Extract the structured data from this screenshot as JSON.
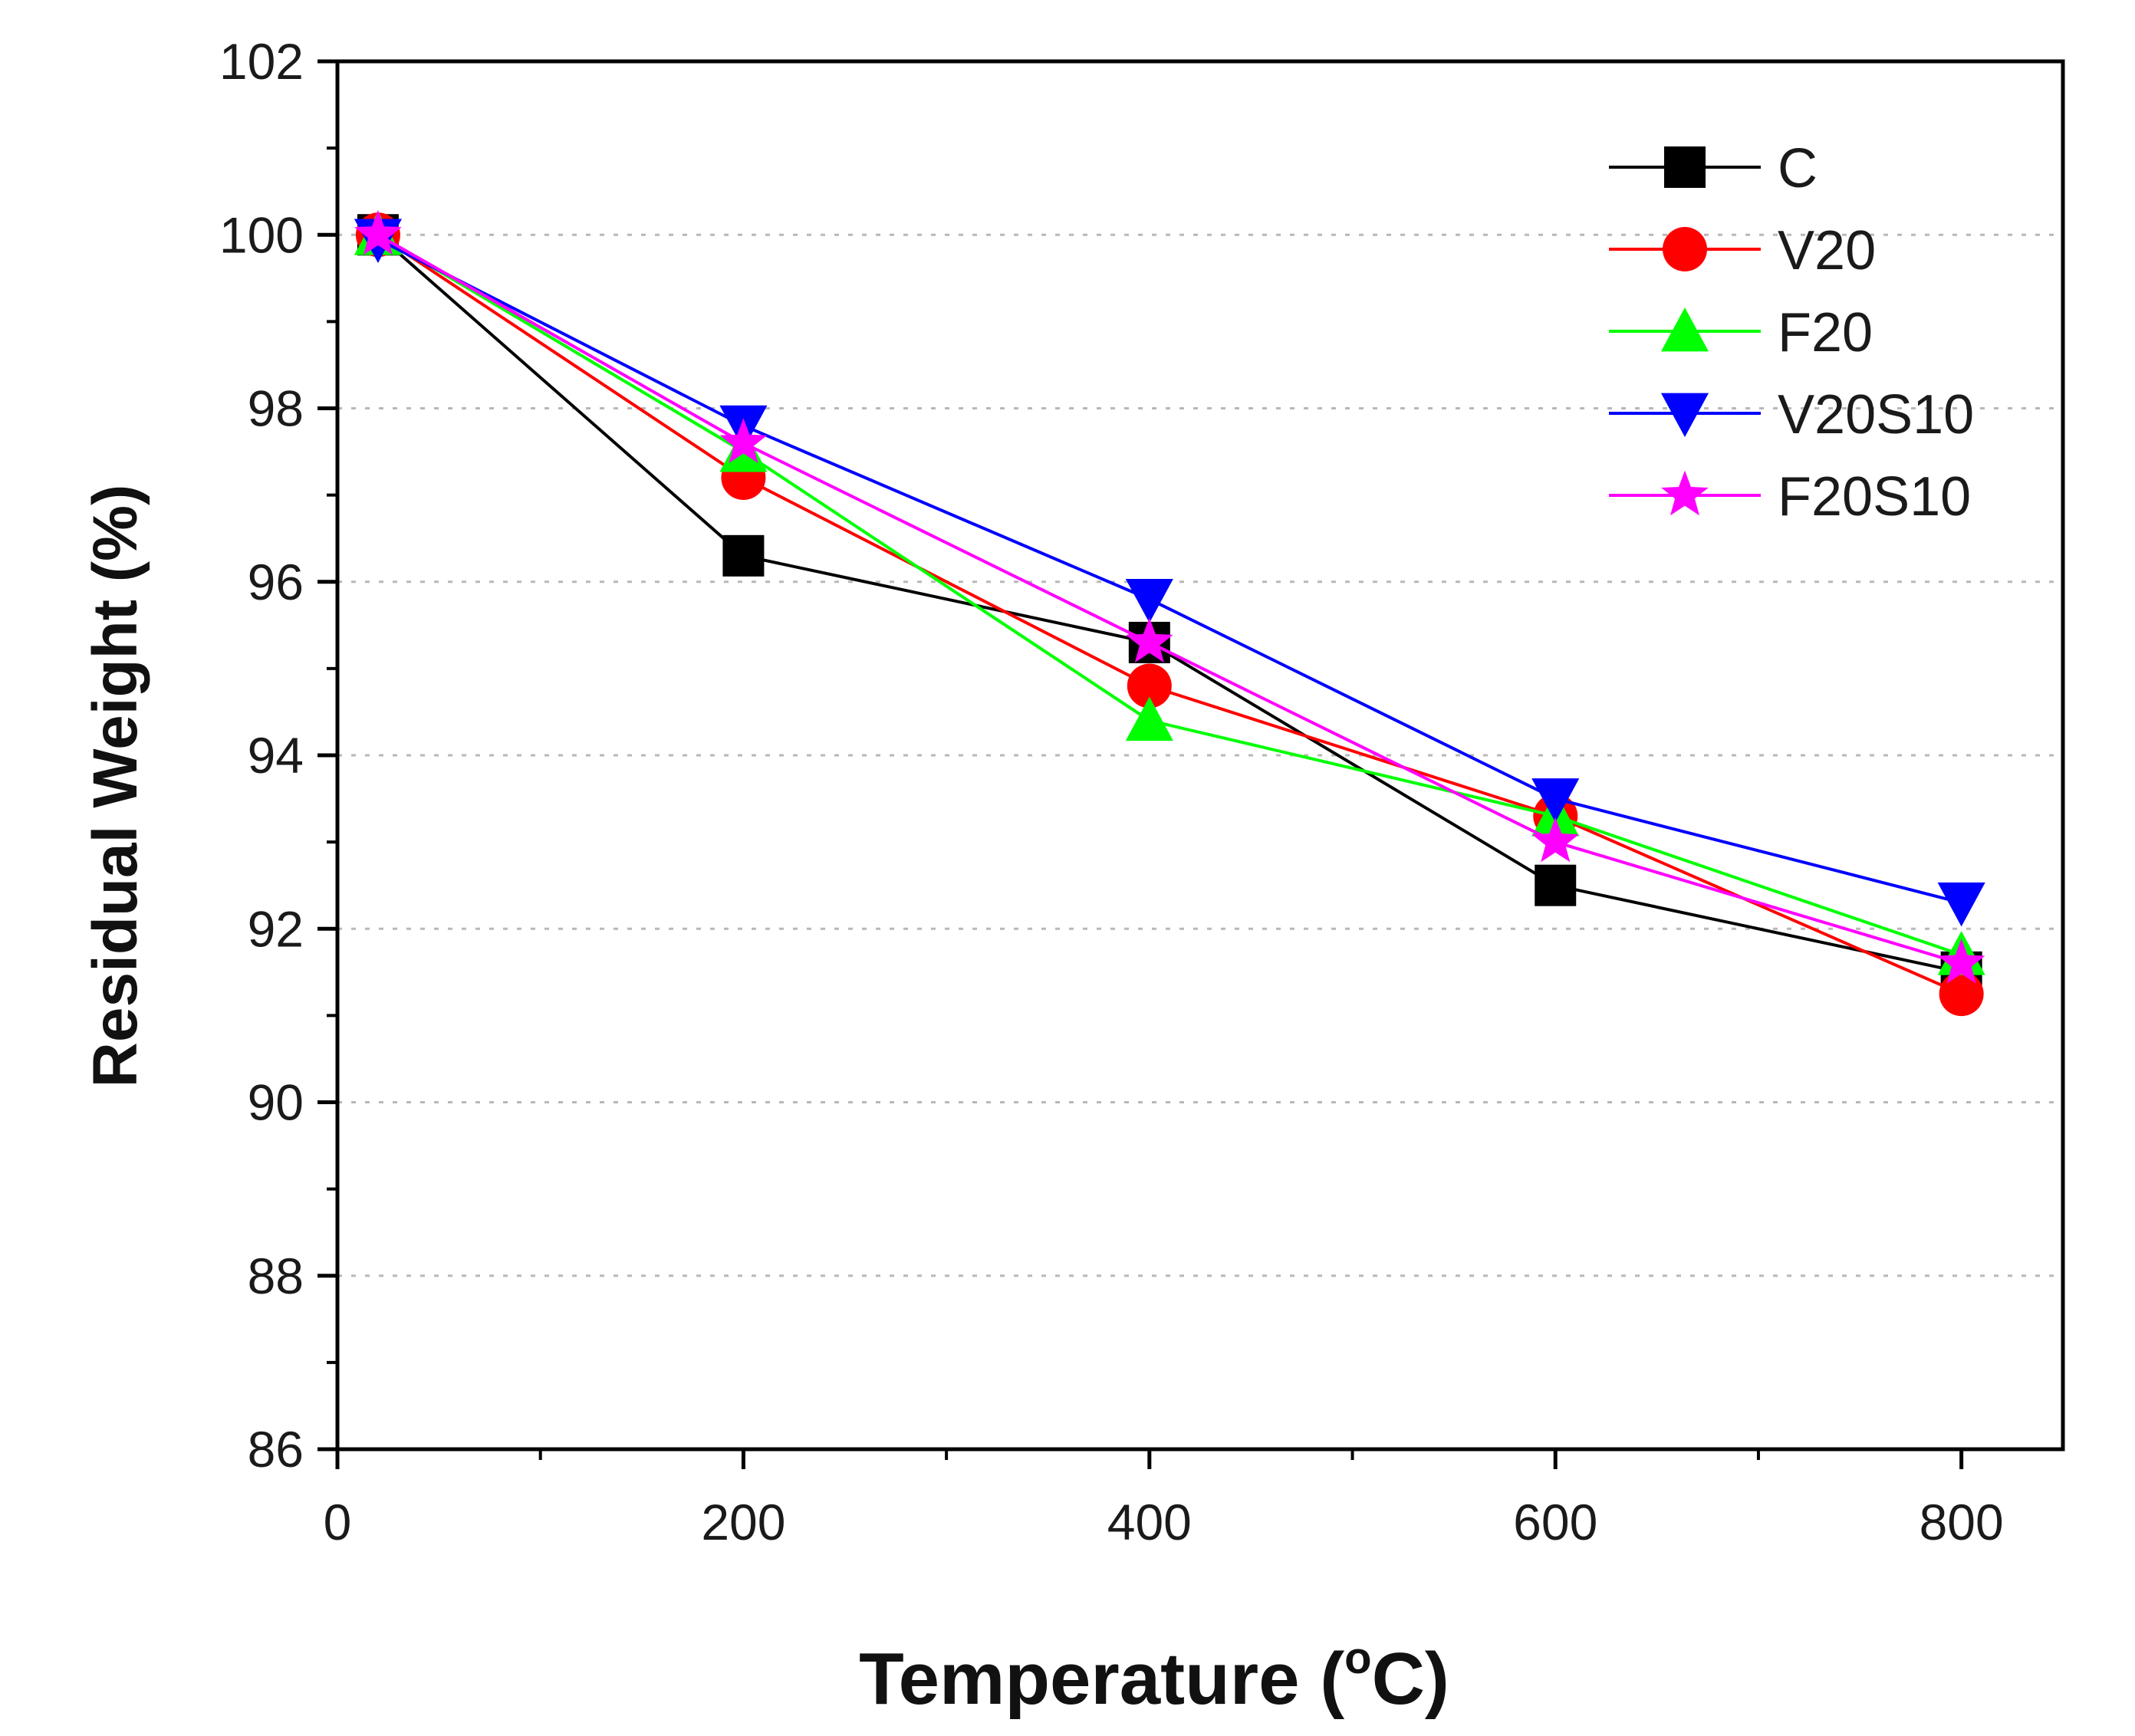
{
  "chart_data": {
    "type": "line",
    "xlabel": "Temperature (",
    "xlabel_sup": "o",
    "xlabel_end": "C)",
    "ylabel": "Residual Weight (%)",
    "xlim": [
      0,
      850
    ],
    "ylim": [
      86,
      102
    ],
    "xticks": [
      0,
      200,
      400,
      600,
      800
    ],
    "xtick_labels": [
      "0",
      "200",
      "400",
      "600",
      "800"
    ],
    "yticks": [
      86,
      88,
      90,
      92,
      94,
      96,
      98,
      100,
      102
    ],
    "ytick_labels": [
      "86",
      "88",
      "90",
      "92",
      "94",
      "96",
      "98",
      "100",
      "102"
    ],
    "grid": "horizontal dotted",
    "legend_position": "top-right",
    "x": [
      20,
      200,
      400,
      600,
      800
    ],
    "series": [
      {
        "name": "C",
        "values": [
          100,
          96.3,
          95.3,
          92.5,
          91.5
        ],
        "color": "#000000",
        "marker": "square"
      },
      {
        "name": "V20",
        "values": [
          100,
          97.2,
          94.8,
          93.3,
          91.25
        ],
        "color": "#ff0000",
        "marker": "circle"
      },
      {
        "name": "F20",
        "values": [
          100,
          97.5,
          94.4,
          93.3,
          91.7
        ],
        "color": "#00ff00",
        "marker": "triangle-up"
      },
      {
        "name": "V20S10",
        "values": [
          99.95,
          97.8,
          95.8,
          93.5,
          92.3
        ],
        "color": "#0000ff",
        "marker": "triangle-down"
      },
      {
        "name": "F20S10",
        "values": [
          100,
          97.6,
          95.3,
          93.0,
          91.6
        ],
        "color": "#ff00ff",
        "marker": "star"
      }
    ]
  }
}
